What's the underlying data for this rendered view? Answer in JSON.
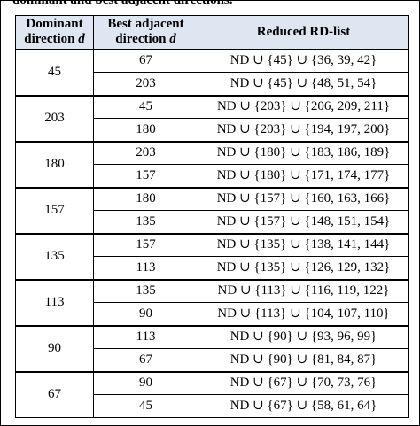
{
  "caption": "dominant and best adjacent directions.",
  "headers": {
    "dominant": "Dominant direction",
    "dominant_var": "d",
    "best": "Best adjacent direction",
    "best_var": "d",
    "reduced": "Reduced RD-list"
  },
  "groups": [
    {
      "dominant": "45",
      "rows": [
        {
          "adjacent": "67",
          "list": "ND ∪ {45} ∪ {36, 39, 42}"
        },
        {
          "adjacent": "203",
          "list": "ND ∪ {45} ∪ {48, 51, 54}"
        }
      ]
    },
    {
      "dominant": "203",
      "rows": [
        {
          "adjacent": "45",
          "list": "ND ∪ {203} ∪ {206, 209, 211}"
        },
        {
          "adjacent": "180",
          "list": "ND ∪ {203} ∪ {194, 197, 200}"
        }
      ]
    },
    {
      "dominant": "180",
      "rows": [
        {
          "adjacent": "203",
          "list": "ND ∪ {180} ∪ {183, 186, 189}"
        },
        {
          "adjacent": "157",
          "list": "ND ∪ {180} ∪ {171, 174, 177}"
        }
      ]
    },
    {
      "dominant": "157",
      "rows": [
        {
          "adjacent": "180",
          "list": "ND ∪ {157} ∪ {160, 163, 166}"
        },
        {
          "adjacent": "135",
          "list": "ND ∪ {157} ∪ {148, 151, 154}"
        }
      ]
    },
    {
      "dominant": "135",
      "rows": [
        {
          "adjacent": "157",
          "list": "ND ∪ {135} ∪ {138, 141, 144}"
        },
        {
          "adjacent": "113",
          "list": "ND ∪ {135} ∪ {126, 129, 132}"
        }
      ]
    },
    {
      "dominant": "113",
      "rows": [
        {
          "adjacent": "135",
          "list": "ND ∪ {113} ∪ {116, 119, 122}"
        },
        {
          "adjacent": "90",
          "list": "ND ∪ {113} ∪ {104, 107, 110}"
        }
      ]
    },
    {
      "dominant": "90",
      "rows": [
        {
          "adjacent": "113",
          "list": "ND ∪ {90} ∪ {93, 96, 99}"
        },
        {
          "adjacent": "67",
          "list": "ND ∪ {90} ∪ {81, 84, 87}"
        }
      ]
    },
    {
      "dominant": "67",
      "rows": [
        {
          "adjacent": "90",
          "list": "ND ∪ {67} ∪ {70, 73, 76}"
        },
        {
          "adjacent": "45",
          "list": "ND ∪ {67} ∪ {58, 61, 64}"
        }
      ]
    }
  ]
}
